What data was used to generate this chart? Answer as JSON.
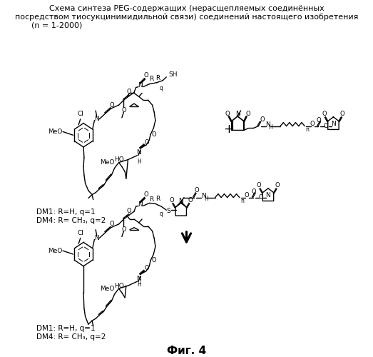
{
  "title_line1": "Схема синтеза PEG-содержащих (нерасщепляемых соединённых",
  "title_line2": "посредством тиосукцинимидильной связи) соединений настоящего изобретения",
  "title_line3": "(n = 1-2000)",
  "dm1_top": "DM1: R=H, q=1",
  "dm4_top": "DM4: R= CH₃, q=2",
  "dm1_bot": "DM1: R=H, q=1",
  "dm4_bot": "DM4: R= CH₃, q=2",
  "fig_label": "Фиг. 4",
  "plus": "+",
  "bg": "#ffffff",
  "fg": "#000000",
  "figsize": [
    5.23,
    5.0
  ],
  "dpi": 100
}
